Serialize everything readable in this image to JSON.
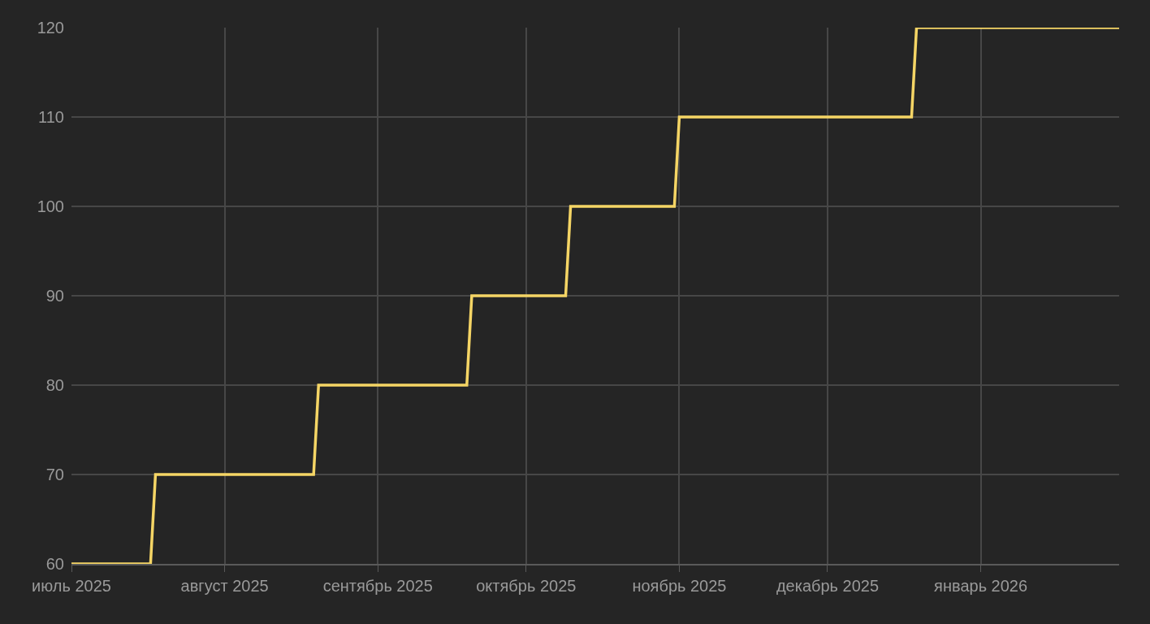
{
  "chart_data": {
    "type": "line",
    "x": [
      "2025-07-01",
      "2025-07-17",
      "2025-07-18",
      "2025-08-19",
      "2025-08-20",
      "2025-09-19",
      "2025-09-20",
      "2025-10-09",
      "2025-10-10",
      "2025-10-31",
      "2025-11-01",
      "2025-12-18",
      "2025-12-19",
      "2026-01-29"
    ],
    "series": [
      {
        "color": "#f5d565",
        "values": [
          60,
          60,
          70,
          70,
          80,
          80,
          90,
          90,
          100,
          100,
          110,
          110,
          120,
          120
        ]
      }
    ],
    "xlim": [
      "2025-07-01",
      "2026-01-29"
    ],
    "xticks": [
      {
        "value": "2025-07-01",
        "label": "июль 2025"
      },
      {
        "value": "2025-08-01",
        "label": "август 2025"
      },
      {
        "value": "2025-09-01",
        "label": "сентябрь 2025"
      },
      {
        "value": "2025-10-01",
        "label": "октябрь 2025"
      },
      {
        "value": "2025-11-01",
        "label": "ноябрь 2025"
      },
      {
        "value": "2025-12-01",
        "label": "декабрь 2025"
      },
      {
        "value": "2026-01-01",
        "label": "январь 2026"
      }
    ],
    "ylim": [
      60,
      120
    ],
    "yticks": [
      60,
      70,
      80,
      90,
      100,
      110,
      120
    ],
    "grid": true,
    "marker": "none",
    "line_style": "solid"
  }
}
